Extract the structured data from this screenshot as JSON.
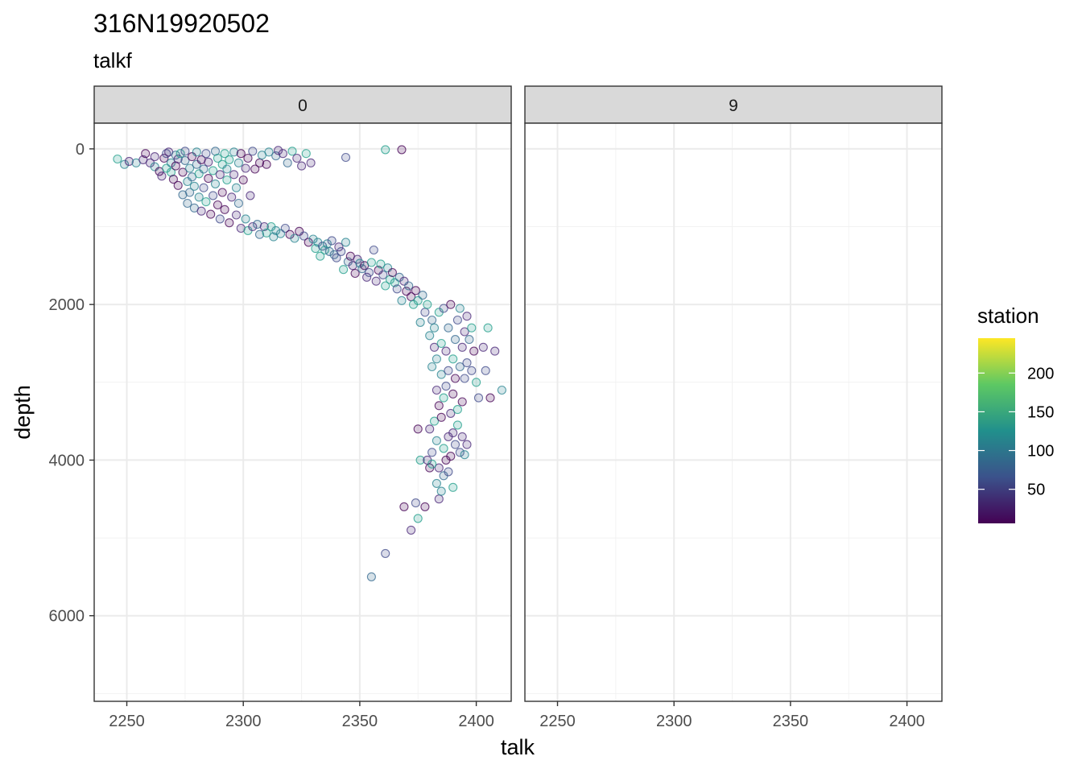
{
  "chart_data": {
    "type": "scatter",
    "title": "316N19920502",
    "subtitle": "talkf",
    "xlabel": "talk",
    "ylabel": "depth",
    "xlim": [
      2236,
      2415
    ],
    "ylim": [
      7100,
      -330
    ],
    "y_reversed": true,
    "x_ticks": [
      2250,
      2300,
      2350,
      2400
    ],
    "y_ticks": [
      0,
      2000,
      4000,
      6000
    ],
    "x_tick_labels": [
      "2250",
      "2300",
      "2350",
      "2400"
    ],
    "y_tick_labels": [
      "0",
      "2000",
      "4000",
      "6000"
    ],
    "grid": true,
    "facets": [
      {
        "label": "0",
        "points": [
          [
            2246,
            130
          ],
          [
            2249,
            200
          ],
          [
            2251,
            160
          ],
          [
            2254,
            180
          ],
          [
            2257,
            140
          ],
          [
            2258,
            60
          ],
          [
            2260,
            180
          ],
          [
            2262,
            230
          ],
          [
            2262,
            100
          ],
          [
            2264,
            290
          ],
          [
            2265,
            350
          ],
          [
            2266,
            120
          ],
          [
            2267,
            250
          ],
          [
            2267,
            60
          ],
          [
            2268,
            40
          ],
          [
            2269,
            180
          ],
          [
            2269,
            300
          ],
          [
            2270,
            390
          ],
          [
            2271,
            80
          ],
          [
            2271,
            220
          ],
          [
            2272,
            130
          ],
          [
            2272,
            470
          ],
          [
            2273,
            60
          ],
          [
            2274,
            300
          ],
          [
            2274,
            590
          ],
          [
            2275,
            30
          ],
          [
            2275,
            150
          ],
          [
            2276,
            420
          ],
          [
            2276,
            700
          ],
          [
            2277,
            250
          ],
          [
            2277,
            560
          ],
          [
            2278,
            100
          ],
          [
            2278,
            360
          ],
          [
            2279,
            480
          ],
          [
            2279,
            760
          ],
          [
            2280,
            40
          ],
          [
            2280,
            200
          ],
          [
            2281,
            620
          ],
          [
            2281,
            320
          ],
          [
            2282,
            140
          ],
          [
            2282,
            800
          ],
          [
            2283,
            500
          ],
          [
            2283,
            260
          ],
          [
            2284,
            60
          ],
          [
            2284,
            680
          ],
          [
            2285,
            380
          ],
          [
            2285,
            170
          ],
          [
            2286,
            840
          ],
          [
            2287,
            280
          ],
          [
            2287,
            600
          ],
          [
            2288,
            30
          ],
          [
            2288,
            450
          ],
          [
            2289,
            120
          ],
          [
            2289,
            720
          ],
          [
            2290,
            330
          ],
          [
            2290,
            900
          ],
          [
            2291,
            200
          ],
          [
            2291,
            560
          ],
          [
            2292,
            60
          ],
          [
            2292,
            780
          ],
          [
            2293,
            400
          ],
          [
            2293,
            260
          ],
          [
            2294,
            140
          ],
          [
            2294,
            950
          ],
          [
            2295,
            620
          ],
          [
            2296,
            40
          ],
          [
            2296,
            330
          ],
          [
            2297,
            500
          ],
          [
            2297,
            850
          ],
          [
            2298,
            180
          ],
          [
            2298,
            700
          ],
          [
            2299,
            60
          ],
          [
            2299,
            1020
          ],
          [
            2300,
            400
          ],
          [
            2301,
            250
          ],
          [
            2301,
            900
          ],
          [
            2302,
            1050
          ],
          [
            2302,
            120
          ],
          [
            2303,
            600
          ],
          [
            2304,
            30
          ],
          [
            2304,
            1000
          ],
          [
            2305,
            260
          ],
          [
            2306,
            970
          ],
          [
            2307,
            180
          ],
          [
            2307,
            1100
          ],
          [
            2308,
            80
          ],
          [
            2309,
            1000
          ],
          [
            2310,
            200
          ],
          [
            2310,
            1080
          ],
          [
            2311,
            40
          ],
          [
            2312,
            1000
          ],
          [
            2313,
            1130
          ],
          [
            2314,
            90
          ],
          [
            2314,
            1050
          ],
          [
            2315,
            20
          ],
          [
            2316,
            1090
          ],
          [
            2317,
            60
          ],
          [
            2318,
            1020
          ],
          [
            2319,
            180
          ],
          [
            2320,
            1100
          ],
          [
            2321,
            30
          ],
          [
            2322,
            1150
          ],
          [
            2323,
            120
          ],
          [
            2324,
            1060
          ],
          [
            2325,
            220
          ],
          [
            2326,
            1120
          ],
          [
            2327,
            60
          ],
          [
            2328,
            1200
          ],
          [
            2329,
            180
          ],
          [
            2330,
            1160
          ],
          [
            2331,
            1280
          ],
          [
            2332,
            1200
          ],
          [
            2333,
            1380
          ],
          [
            2334,
            1250
          ],
          [
            2335,
            1300
          ],
          [
            2336,
            1220
          ],
          [
            2337,
            1320
          ],
          [
            2338,
            1180
          ],
          [
            2339,
            1360
          ],
          [
            2340,
            1400
          ],
          [
            2341,
            1260
          ],
          [
            2342,
            1320
          ],
          [
            2343,
            1550
          ],
          [
            2344,
            1200
          ],
          [
            2345,
            1450
          ],
          [
            2346,
            1380
          ],
          [
            2347,
            1500
          ],
          [
            2348,
            1600
          ],
          [
            2349,
            1420
          ],
          [
            2350,
            1470
          ],
          [
            2351,
            1540
          ],
          [
            2352,
            1500
          ],
          [
            2353,
            1650
          ],
          [
            2354,
            1590
          ],
          [
            2355,
            1460
          ],
          [
            2356,
            1300
          ],
          [
            2357,
            1700
          ],
          [
            2358,
            1560
          ],
          [
            2359,
            1480
          ],
          [
            2360,
            1620
          ],
          [
            2361,
            1760
          ],
          [
            2362,
            1530
          ],
          [
            2363,
            1680
          ],
          [
            2364,
            1590
          ],
          [
            2365,
            1720
          ],
          [
            2366,
            1800
          ],
          [
            2367,
            1650
          ],
          [
            2368,
            1950
          ],
          [
            2369,
            1700
          ],
          [
            2370,
            1830
          ],
          [
            2371,
            1760
          ],
          [
            2372,
            1900
          ],
          [
            2373,
            2000
          ],
          [
            2374,
            1820
          ],
          [
            2375,
            1950
          ],
          [
            2376,
            2230
          ],
          [
            2377,
            1880
          ],
          [
            2378,
            2100
          ],
          [
            2379,
            2000
          ],
          [
            2380,
            2400
          ],
          [
            2381,
            2200
          ],
          [
            2381,
            2800
          ],
          [
            2382,
            2550
          ],
          [
            2382,
            2300
          ],
          [
            2383,
            3100
          ],
          [
            2383,
            2700
          ],
          [
            2384,
            2100
          ],
          [
            2384,
            3300
          ],
          [
            2385,
            2500
          ],
          [
            2385,
            2900
          ],
          [
            2386,
            3200
          ],
          [
            2386,
            2050
          ],
          [
            2387,
            2600
          ],
          [
            2387,
            3050
          ],
          [
            2388,
            2300
          ],
          [
            2388,
            2850
          ],
          [
            2389,
            3400
          ],
          [
            2389,
            2000
          ],
          [
            2390,
            2700
          ],
          [
            2390,
            3150
          ],
          [
            2391,
            2450
          ],
          [
            2391,
            2950
          ],
          [
            2392,
            3350
          ],
          [
            2392,
            2200
          ],
          [
            2393,
            2800
          ],
          [
            2393,
            2050
          ],
          [
            2394,
            2550
          ],
          [
            2394,
            3250
          ],
          [
            2395,
            2350
          ],
          [
            2395,
            2950
          ],
          [
            2396,
            2150
          ],
          [
            2396,
            2750
          ],
          [
            2397,
            2450
          ],
          [
            2398,
            2850
          ],
          [
            2398,
            2300
          ],
          [
            2399,
            2600
          ],
          [
            2400,
            3000
          ],
          [
            2401,
            3200
          ],
          [
            2403,
            2550
          ],
          [
            2404,
            2850
          ],
          [
            2405,
            2300
          ],
          [
            2406,
            3200
          ],
          [
            2408,
            2600
          ],
          [
            2411,
            3100
          ],
          [
            2380,
            3600
          ],
          [
            2381,
            3900
          ],
          [
            2382,
            3500
          ],
          [
            2383,
            3750
          ],
          [
            2384,
            4100
          ],
          [
            2385,
            3450
          ],
          [
            2386,
            3850
          ],
          [
            2387,
            4000
          ],
          [
            2388,
            3700
          ],
          [
            2389,
            3950
          ],
          [
            2390,
            3650
          ],
          [
            2391,
            3800
          ],
          [
            2392,
            3550
          ],
          [
            2393,
            3900
          ],
          [
            2394,
            3700
          ],
          [
            2395,
            3930
          ],
          [
            2396,
            3800
          ],
          [
            2383,
            4300
          ],
          [
            2384,
            4500
          ],
          [
            2385,
            4400
          ],
          [
            2386,
            4200
          ],
          [
            2388,
            4150
          ],
          [
            2390,
            4350
          ],
          [
            2375,
            3600
          ],
          [
            2376,
            4000
          ],
          [
            2378,
            4600
          ],
          [
            2379,
            4000
          ],
          [
            2380,
            4100
          ],
          [
            2381,
            4050
          ],
          [
            2374,
            4550
          ],
          [
            2375,
            4750
          ],
          [
            2369,
            4600
          ],
          [
            2372,
            4900
          ],
          [
            2361,
            5200
          ],
          [
            2355,
            5500
          ],
          [
            2344,
            110
          ],
          [
            2361,
            10
          ],
          [
            2368,
            10
          ]
        ]
      },
      {
        "label": "9",
        "points": []
      }
    ],
    "legend": {
      "title": "station",
      "placement": "right",
      "min": 6,
      "max": 245,
      "tick_values": [
        50,
        100,
        150,
        200
      ],
      "tick_labels": [
        "50",
        "100",
        "150",
        "200"
      ]
    }
  }
}
